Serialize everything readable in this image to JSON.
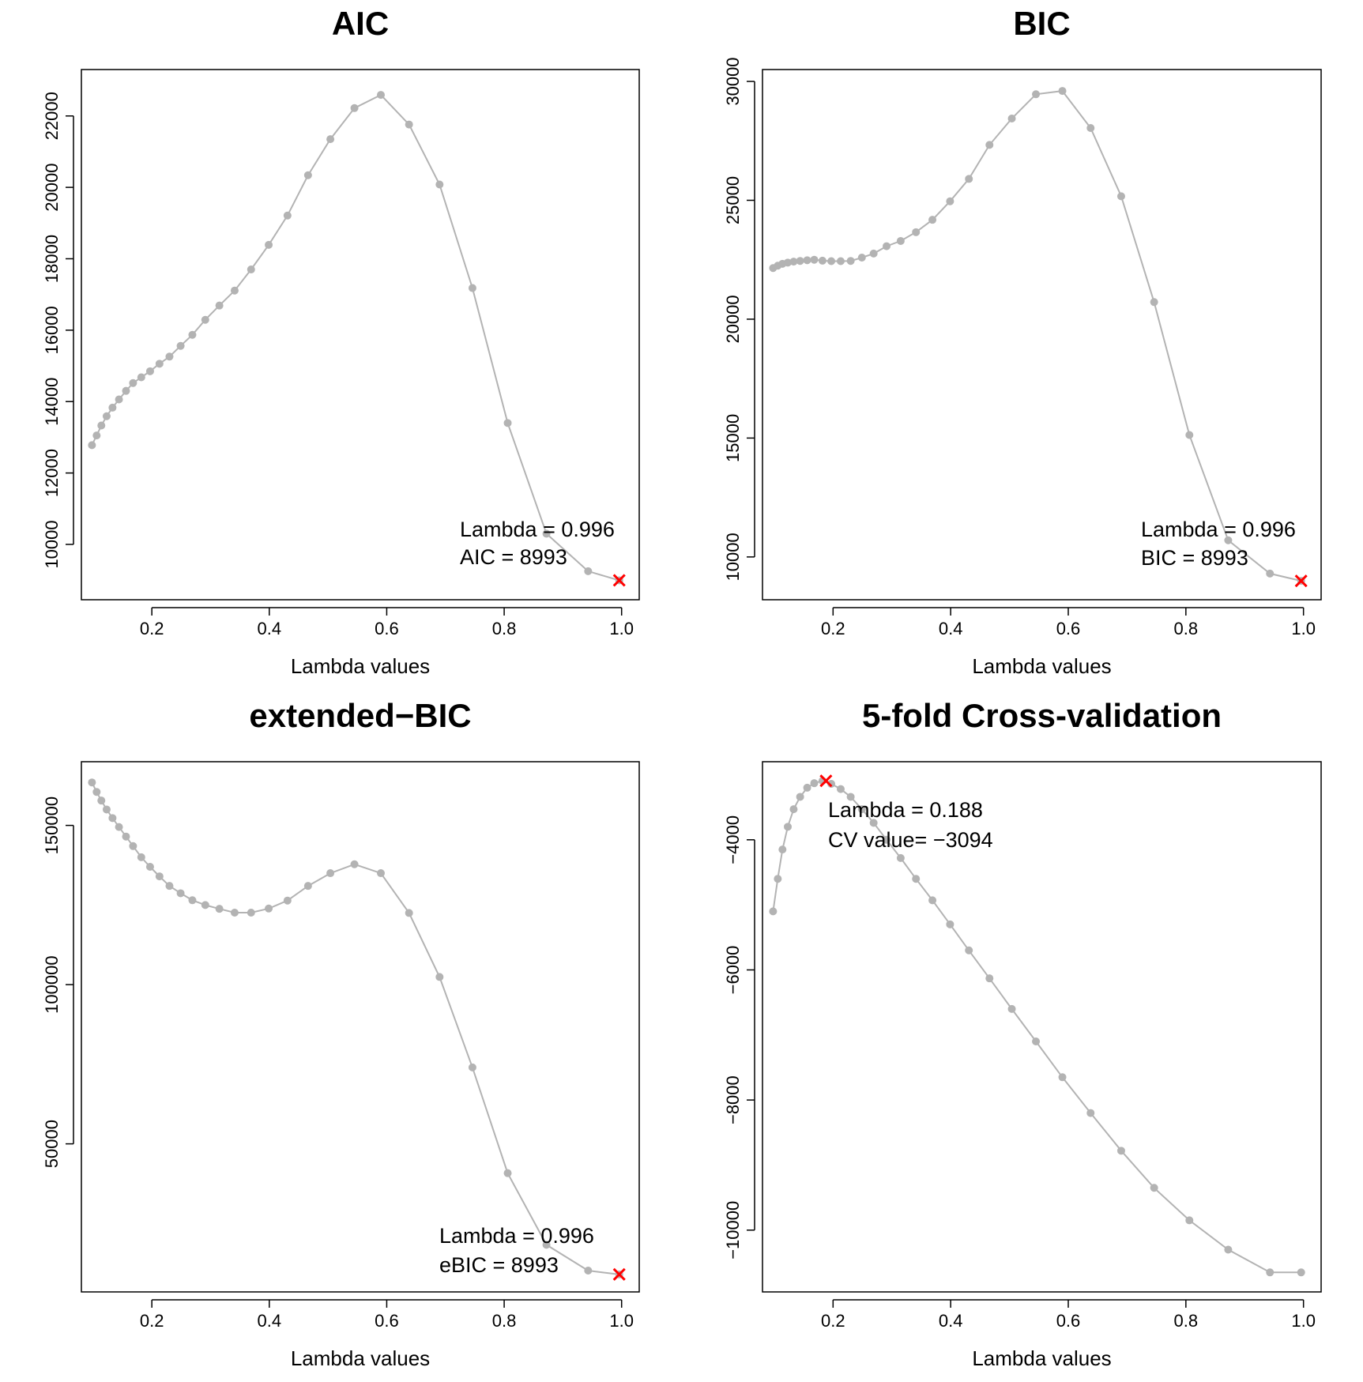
{
  "chart_data": [
    {
      "type": "line",
      "title": "AIC",
      "xlabel": "Lambda values",
      "ylabel": "",
      "xlim": [
        0.08,
        1.03
      ],
      "ylim": [
        8450,
        23300
      ],
      "xticks": [
        "0.2",
        "0.4",
        "0.6",
        "0.8",
        "1.0"
      ],
      "yticks": [
        "10000",
        "12000",
        "14000",
        "16000",
        "18000",
        "20000",
        "22000"
      ],
      "series": [
        {
          "x": [
            0.098,
            0.106,
            0.114,
            0.123,
            0.133,
            0.144,
            0.156,
            0.168,
            0.182,
            0.197,
            0.213,
            0.23,
            0.249,
            0.269,
            0.291,
            0.315,
            0.341,
            0.369,
            0.399,
            0.431,
            0.466,
            0.504,
            0.545,
            0.59,
            0.638,
            0.69,
            0.746,
            0.806,
            0.872,
            0.943,
            0.996
          ],
          "y": [
            12780,
            13050,
            13330,
            13590,
            13830,
            14060,
            14300,
            14520,
            14680,
            14850,
            15060,
            15260,
            15560,
            15870,
            16290,
            16690,
            17110,
            17700,
            18390,
            19210,
            20340,
            21350,
            22220,
            22590,
            21760,
            20080,
            17180,
            13400,
            10300,
            9250,
            8993
          ]
        }
      ],
      "optimum": {
        "x": 0.996,
        "y": 8993
      },
      "annotation": [
        "Lambda = 0.996",
        "AIC = 8993"
      ]
    },
    {
      "type": "line",
      "title": "BIC",
      "xlabel": "Lambda values",
      "ylabel": "",
      "xlim": [
        0.08,
        1.03
      ],
      "ylim": [
        8200,
        30500
      ],
      "xticks": [
        "0.2",
        "0.4",
        "0.6",
        "0.8",
        "1.0"
      ],
      "yticks": [
        "10000",
        "15000",
        "20000",
        "25000",
        "30000"
      ],
      "series": [
        {
          "x": [
            0.098,
            0.106,
            0.114,
            0.123,
            0.133,
            0.144,
            0.156,
            0.168,
            0.182,
            0.197,
            0.213,
            0.23,
            0.249,
            0.269,
            0.291,
            0.315,
            0.341,
            0.369,
            0.399,
            0.431,
            0.466,
            0.504,
            0.545,
            0.59,
            0.638,
            0.69,
            0.746,
            0.806,
            0.872,
            0.943,
            0.996
          ],
          "y": [
            22150,
            22250,
            22330,
            22380,
            22420,
            22450,
            22480,
            22500,
            22460,
            22440,
            22440,
            22450,
            22590,
            22760,
            23070,
            23290,
            23660,
            24180,
            24960,
            25900,
            27330,
            28440,
            29460,
            29600,
            28040,
            25170,
            20720,
            15130,
            10700,
            9300,
            8993
          ]
        }
      ],
      "optimum": {
        "x": 0.996,
        "y": 8993
      },
      "annotation": [
        "Lambda = 0.996",
        "BIC = 8993"
      ]
    },
    {
      "type": "line",
      "title": "extended−BIC",
      "xlabel": "Lambda values",
      "ylabel": "",
      "xlim": [
        0.08,
        1.03
      ],
      "ylim": [
        3500,
        170000
      ],
      "xticks": [
        "0.2",
        "0.4",
        "0.6",
        "0.8",
        "1.0"
      ],
      "yticks": [
        "50000",
        "100000",
        "150000"
      ],
      "series": [
        {
          "x": [
            0.098,
            0.106,
            0.114,
            0.123,
            0.133,
            0.144,
            0.156,
            0.168,
            0.182,
            0.197,
            0.213,
            0.23,
            0.249,
            0.269,
            0.291,
            0.315,
            0.341,
            0.369,
            0.399,
            0.431,
            0.466,
            0.504,
            0.545,
            0.59,
            0.638,
            0.69,
            0.746,
            0.806,
            0.872,
            0.943,
            0.996
          ],
          "y": [
            163500,
            160500,
            157800,
            155000,
            152300,
            149500,
            146500,
            143500,
            140000,
            137000,
            134000,
            131000,
            128700,
            126500,
            125000,
            123800,
            122600,
            122600,
            123900,
            126400,
            131000,
            135000,
            137800,
            135000,
            122500,
            102400,
            74000,
            40800,
            18300,
            10200,
            8993
          ]
        }
      ],
      "optimum": {
        "x": 0.996,
        "y": 8993
      },
      "annotation": [
        "Lambda = 0.996",
        "eBIC = 8993"
      ]
    },
    {
      "type": "line",
      "title": "5-fold Cross-validation",
      "xlabel": "Lambda values",
      "ylabel": "",
      "xlim": [
        0.08,
        1.03
      ],
      "ylim": [
        -10950,
        -2800
      ],
      "xticks": [
        "0.2",
        "0.4",
        "0.6",
        "0.8",
        "1.0"
      ],
      "yticks": [
        "−10000",
        "−8000",
        "−6000",
        "−4000"
      ],
      "series": [
        {
          "x": [
            0.098,
            0.106,
            0.114,
            0.123,
            0.133,
            0.144,
            0.156,
            0.168,
            0.182,
            0.197,
            0.213,
            0.23,
            0.249,
            0.269,
            0.291,
            0.315,
            0.341,
            0.369,
            0.399,
            0.431,
            0.466,
            0.504,
            0.545,
            0.59,
            0.638,
            0.69,
            0.746,
            0.806,
            0.872,
            0.943,
            0.996
          ],
          "y": [
            -5100,
            -4600,
            -4150,
            -3800,
            -3530,
            -3340,
            -3200,
            -3130,
            -3094,
            -3140,
            -3220,
            -3340,
            -3530,
            -3740,
            -4000,
            -4280,
            -4600,
            -4930,
            -5300,
            -5700,
            -6130,
            -6600,
            -7100,
            -7650,
            -8200,
            -8780,
            -9350,
            -9850,
            -10300,
            -10650,
            -10650
          ]
        }
      ],
      "optimum": {
        "x": 0.188,
        "y": -3094
      },
      "annotation": [
        "Lambda = 0.188",
        "CV value= −3094"
      ]
    }
  ]
}
